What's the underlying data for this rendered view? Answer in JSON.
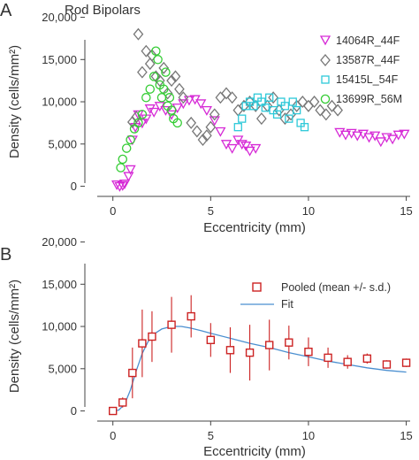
{
  "chart_data": [
    {
      "panel": "A",
      "type": "scatter",
      "title": "Rod Bipolars",
      "xlabel": "Eccentricity (mm)",
      "ylabel": "Density (cells/mm²)",
      "xlim": [
        -0.8,
        15.2
      ],
      "ylim": [
        -1200,
        21000
      ],
      "xticks": [
        0,
        5,
        10,
        15
      ],
      "yticks": [
        0,
        5000,
        10000,
        15000,
        20000
      ],
      "ytick_labels": [
        "0",
        "5,000",
        "10,000",
        "15,000",
        "20,000"
      ],
      "legend_position": "top-right",
      "series": [
        {
          "name": "14064R_44F",
          "marker": "triangle-down",
          "color": "#d62ad6",
          "points": [
            [
              0.2,
              200
            ],
            [
              0.35,
              0
            ],
            [
              0.5,
              100
            ],
            [
              0.6,
              300
            ],
            [
              0.8,
              1200
            ],
            [
              0.9,
              2000
            ],
            [
              1.0,
              5500
            ],
            [
              1.15,
              7000
            ],
            [
              1.3,
              8500
            ],
            [
              1.5,
              7500
            ],
            [
              1.7,
              8000
            ],
            [
              1.9,
              9200
            ],
            [
              2.1,
              8800
            ],
            [
              2.4,
              9500
            ],
            [
              2.7,
              9000
            ],
            [
              3.0,
              8500
            ],
            [
              3.3,
              9300
            ],
            [
              3.6,
              9800
            ],
            [
              3.9,
              10200
            ],
            [
              4.2,
              10300
            ],
            [
              4.5,
              9800
            ],
            [
              4.8,
              9000
            ],
            [
              5.2,
              7800
            ],
            [
              5.5,
              6500
            ],
            [
              5.8,
              5000
            ],
            [
              6.1,
              4500
            ],
            [
              6.4,
              5500
            ],
            [
              6.6,
              5000
            ],
            [
              6.8,
              4800
            ],
            [
              7.0,
              4200
            ],
            [
              7.3,
              4500
            ],
            [
              11.6,
              6400
            ],
            [
              11.9,
              6100
            ],
            [
              12.2,
              6300
            ],
            [
              12.5,
              6000
            ],
            [
              12.8,
              6200
            ],
            [
              13.1,
              5800
            ],
            [
              13.4,
              6000
            ],
            [
              13.7,
              5300
            ],
            [
              14.0,
              5800
            ],
            [
              14.3,
              5600
            ],
            [
              14.6,
              6100
            ],
            [
              14.9,
              6200
            ]
          ]
        },
        {
          "name": "13587R_44F",
          "marker": "diamond",
          "color": "#777777",
          "points": [
            [
              1.0,
              7600
            ],
            [
              1.2,
              8200
            ],
            [
              1.3,
              18000
            ],
            [
              1.5,
              13500
            ],
            [
              1.7,
              16000
            ],
            [
              1.9,
              14500
            ],
            [
              2.0,
              15500
            ],
            [
              2.2,
              13000
            ],
            [
              2.4,
              12500
            ],
            [
              2.6,
              14000
            ],
            [
              2.8,
              11000
            ],
            [
              3.0,
              12500
            ],
            [
              3.2,
              13000
            ],
            [
              3.4,
              11500
            ],
            [
              3.6,
              10500
            ],
            [
              4.0,
              7500
            ],
            [
              4.3,
              6500
            ],
            [
              4.6,
              5500
            ],
            [
              4.8,
              6000
            ],
            [
              5.0,
              7000
            ],
            [
              5.2,
              8500
            ],
            [
              5.5,
              10500
            ],
            [
              5.8,
              11000
            ],
            [
              6.1,
              10500
            ],
            [
              6.4,
              9000
            ],
            [
              6.7,
              9500
            ],
            [
              7.0,
              10000
            ],
            [
              7.3,
              9500
            ],
            [
              7.6,
              8000
            ],
            [
              7.9,
              9500
            ],
            [
              8.2,
              10500
            ],
            [
              8.5,
              9000
            ],
            [
              8.8,
              8000
            ],
            [
              9.1,
              8500
            ],
            [
              9.4,
              9500
            ],
            [
              9.7,
              10000
            ],
            [
              10.0,
              9500
            ],
            [
              10.3,
              10000
            ],
            [
              10.6,
              9000
            ],
            [
              10.9,
              8500
            ],
            [
              11.2,
              9500
            ],
            [
              11.5,
              9000
            ]
          ]
        },
        {
          "name": "15415L_54F",
          "marker": "square",
          "color": "#2ec9d9",
          "points": [
            [
              6.4,
              7000
            ],
            [
              6.6,
              8000
            ],
            [
              6.8,
              9500
            ],
            [
              7.0,
              10000
            ],
            [
              7.2,
              9500
            ],
            [
              7.4,
              10500
            ],
            [
              7.6,
              10000
            ],
            [
              7.8,
              9300
            ],
            [
              8.0,
              10500
            ],
            [
              8.2,
              9000
            ],
            [
              8.4,
              8500
            ],
            [
              8.6,
              10000
            ],
            [
              8.8,
              9500
            ],
            [
              9.0,
              8000
            ],
            [
              9.2,
              10000
            ],
            [
              9.4,
              9000
            ],
            [
              9.6,
              7500
            ],
            [
              9.8,
              7000
            ]
          ]
        },
        {
          "name": "13699R_56M",
          "marker": "circle",
          "color": "#33cc33",
          "points": [
            [
              0.4,
              2200
            ],
            [
              0.5,
              3200
            ],
            [
              0.7,
              4500
            ],
            [
              0.9,
              5500
            ],
            [
              1.1,
              6800
            ],
            [
              1.3,
              7500
            ],
            [
              1.5,
              8500
            ],
            [
              1.7,
              10500
            ],
            [
              1.9,
              11500
            ],
            [
              2.1,
              13000
            ],
            [
              2.2,
              16000
            ],
            [
              2.3,
              15000
            ],
            [
              2.4,
              12000
            ],
            [
              2.5,
              10500
            ],
            [
              2.6,
              11500
            ],
            [
              2.7,
              13500
            ],
            [
              2.8,
              9500
            ],
            [
              2.9,
              10500
            ],
            [
              3.0,
              9000
            ],
            [
              3.1,
              8000
            ],
            [
              3.3,
              7500
            ]
          ]
        }
      ]
    },
    {
      "panel": "B",
      "type": "scatter",
      "title": "",
      "xlabel": "Eccentricity (mm)",
      "ylabel": "Density (cells/mm²)",
      "xlim": [
        -0.8,
        15.2
      ],
      "ylim": [
        -1200,
        21000
      ],
      "xticks": [
        0,
        5,
        10,
        15
      ],
      "yticks": [
        0,
        5000,
        10000,
        15000,
        20000
      ],
      "ytick_labels": [
        "0",
        "5,000",
        "10,000",
        "15,000",
        "20,000"
      ],
      "legend_position": "top-right",
      "series": [
        {
          "name": "Pooled (mean +/- s.d.)",
          "marker": "square",
          "color": "#cc2222",
          "points": [
            {
              "x": 0,
              "y": 0,
              "sd": 0
            },
            {
              "x": 0.5,
              "y": 1000,
              "sd": 600
            },
            {
              "x": 1.0,
              "y": 4500,
              "sd": 3000
            },
            {
              "x": 1.5,
              "y": 8000,
              "sd": 4000
            },
            {
              "x": 2.0,
              "y": 8800,
              "sd": 3000
            },
            {
              "x": 3.0,
              "y": 10200,
              "sd": 3300
            },
            {
              "x": 4.0,
              "y": 11200,
              "sd": 2500
            },
            {
              "x": 5.0,
              "y": 8400,
              "sd": 2000
            },
            {
              "x": 6.0,
              "y": 7200,
              "sd": 2700
            },
            {
              "x": 7.0,
              "y": 6900,
              "sd": 3300
            },
            {
              "x": 8.0,
              "y": 7800,
              "sd": 3000
            },
            {
              "x": 9.0,
              "y": 8100,
              "sd": 2000
            },
            {
              "x": 10.0,
              "y": 7000,
              "sd": 1700
            },
            {
              "x": 11.0,
              "y": 6300,
              "sd": 1200
            },
            {
              "x": 12.0,
              "y": 5800,
              "sd": 800
            },
            {
              "x": 13.0,
              "y": 6200,
              "sd": 600
            },
            {
              "x": 14.0,
              "y": 5500,
              "sd": 500
            },
            {
              "x": 15.0,
              "y": 5700,
              "sd": 500
            }
          ]
        },
        {
          "name": "Fit",
          "marker": "line",
          "color": "#4a8fd0",
          "points": [
            [
              0.0,
              0
            ],
            [
              0.3,
              100
            ],
            [
              0.6,
              800
            ],
            [
              0.9,
              2500
            ],
            [
              1.2,
              4800
            ],
            [
              1.5,
              6800
            ],
            [
              1.8,
              8200
            ],
            [
              2.1,
              9100
            ],
            [
              2.5,
              9700
            ],
            [
              3.0,
              10000
            ],
            [
              3.5,
              10000
            ],
            [
              4.0,
              9800
            ],
            [
              4.5,
              9500
            ],
            [
              5.0,
              9200
            ],
            [
              6.0,
              8600
            ],
            [
              7.0,
              8000
            ],
            [
              8.0,
              7500
            ],
            [
              9.0,
              6900
            ],
            [
              10.0,
              6400
            ],
            [
              11.0,
              5900
            ],
            [
              12.0,
              5500
            ],
            [
              13.0,
              5100
            ],
            [
              14.0,
              4800
            ],
            [
              15.0,
              4600
            ]
          ]
        }
      ]
    }
  ]
}
